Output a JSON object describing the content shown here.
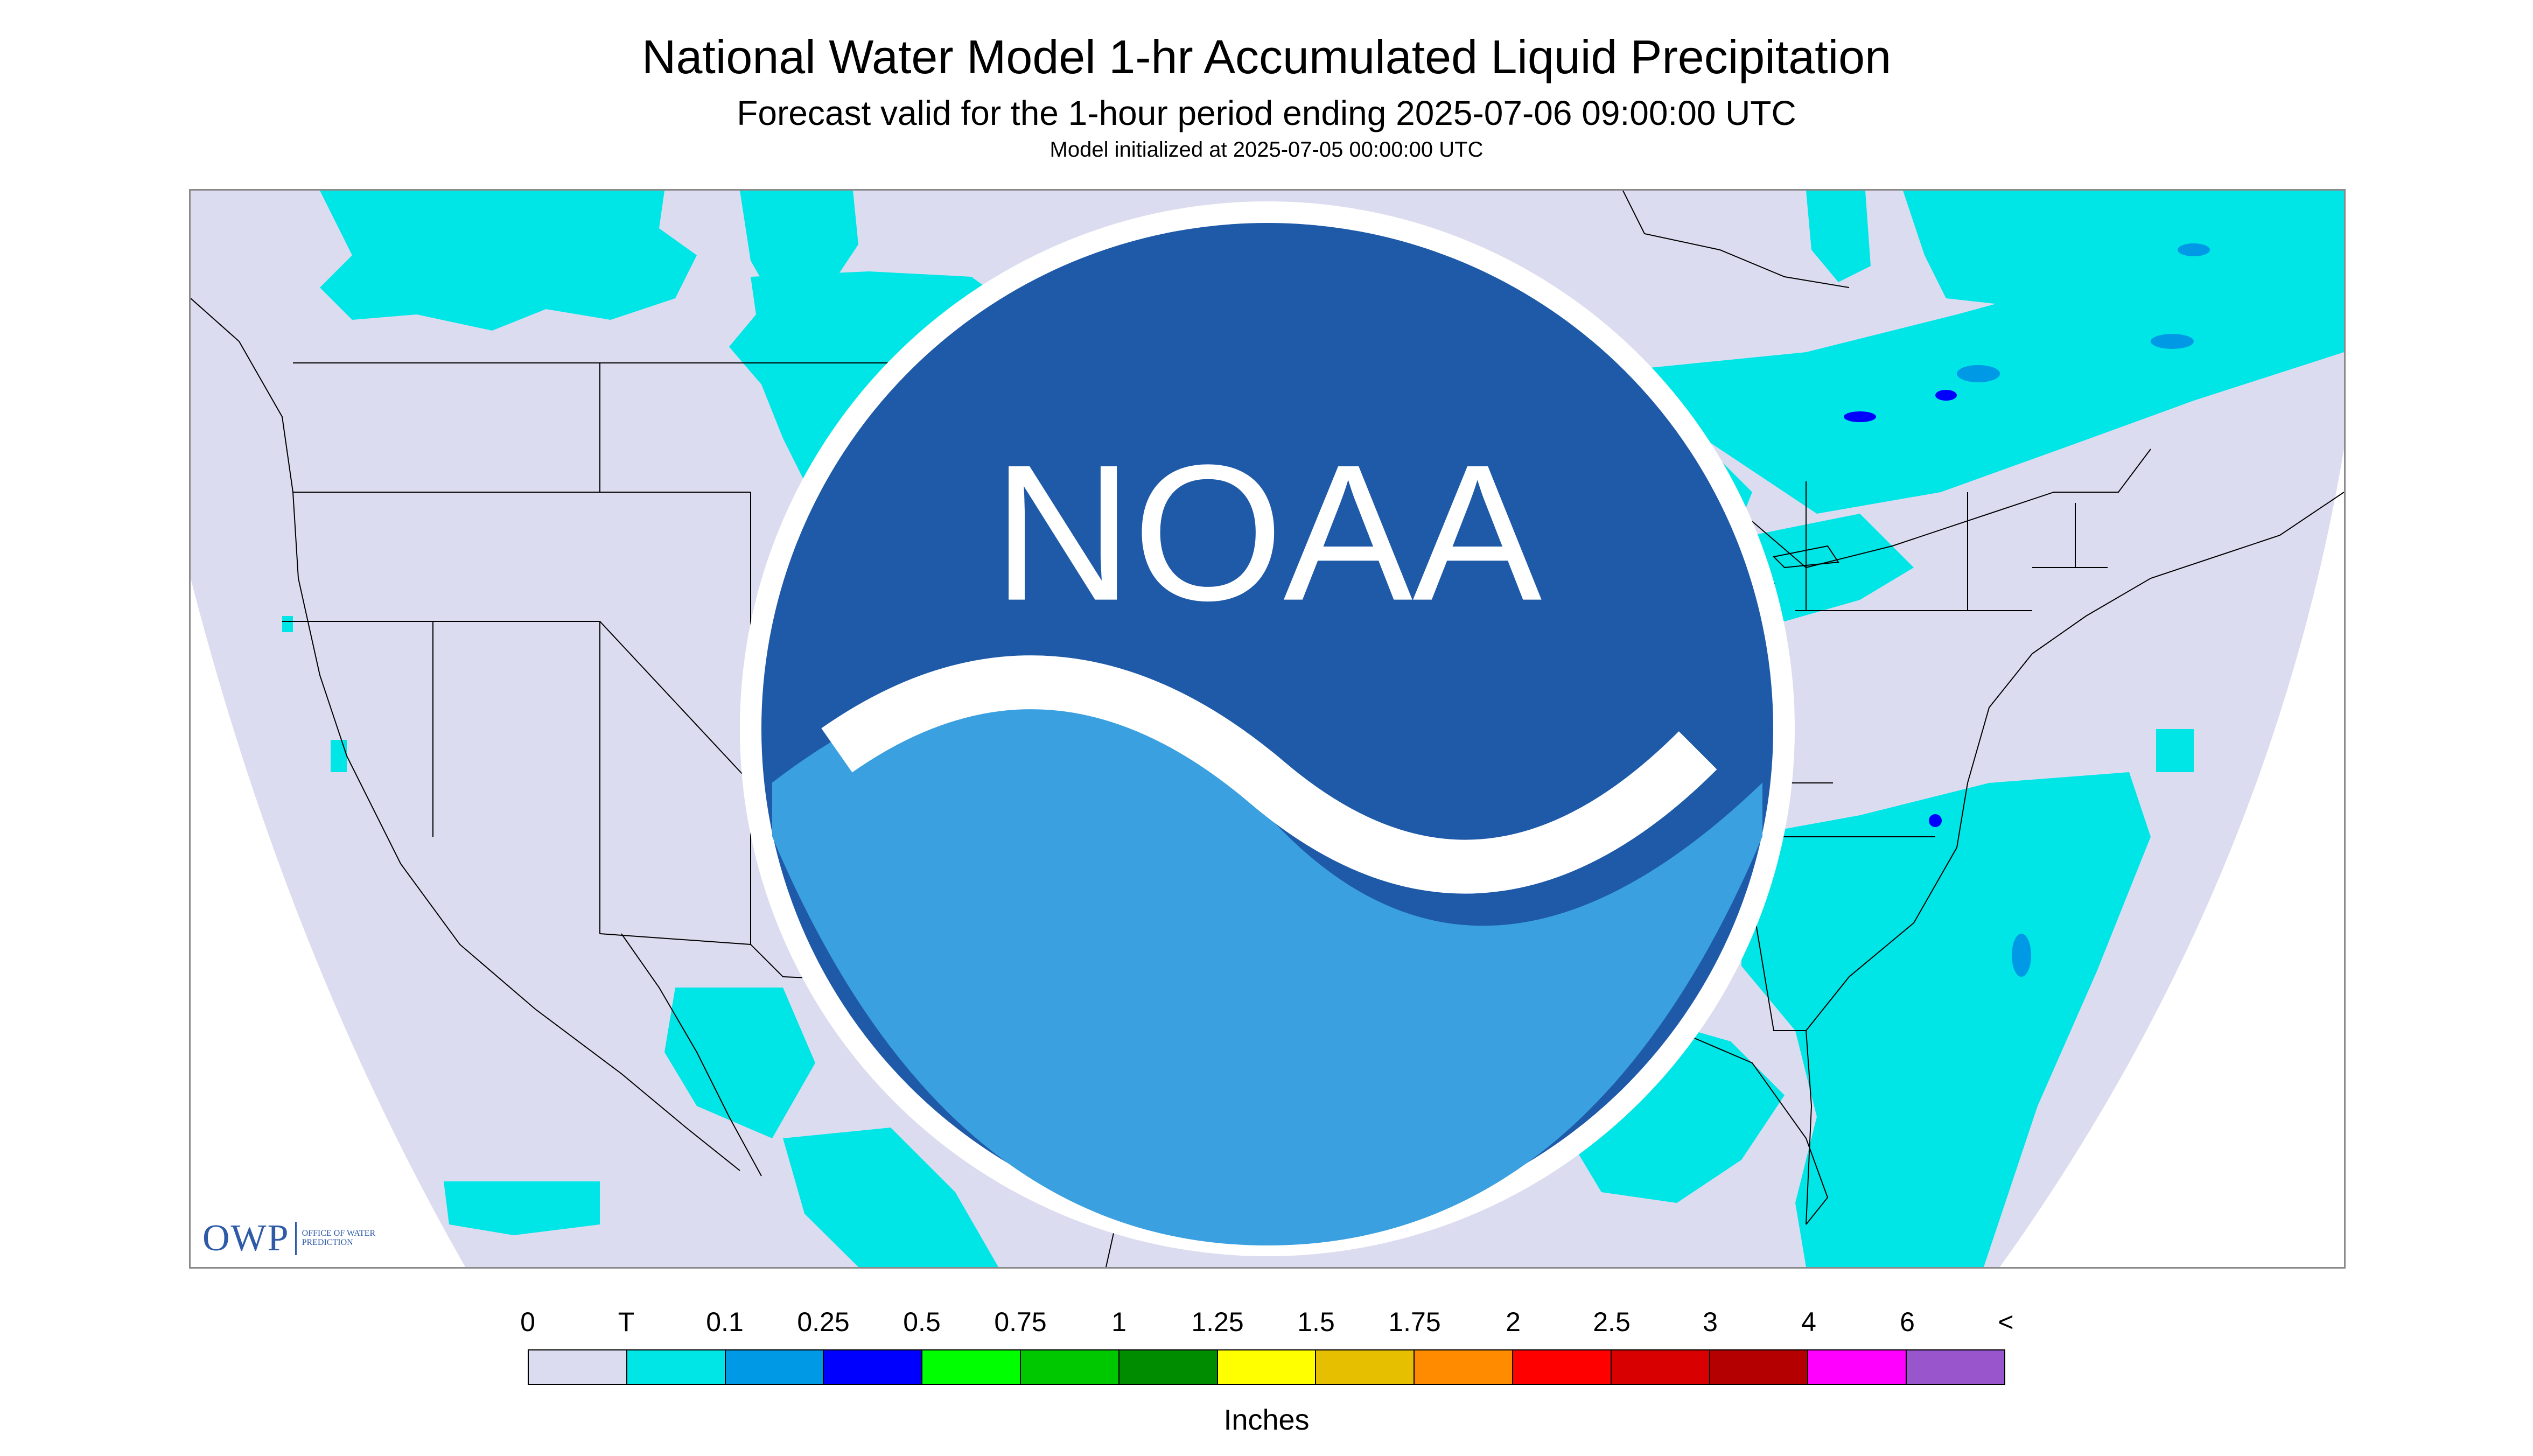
{
  "header": {
    "title": "National Water Model 1-hr Accumulated Liquid Precipitation",
    "subtitle": "Forecast valid for the 1-hour period ending 2025-07-06 09:00:00 UTC",
    "init": "Model initialized at 2025-07-05 00:00:00 UTC"
  },
  "logos": {
    "owp_mark": "OWP",
    "owp_text": "OFFICE OF WATER PREDICTION",
    "noaa_text": "NOAA"
  },
  "legend": {
    "labels": [
      "0",
      "T",
      "0.1",
      "0.25",
      "0.5",
      "0.75",
      "1",
      "1.25",
      "1.5",
      "1.75",
      "2",
      "2.5",
      "3",
      "4",
      "6",
      "<"
    ],
    "colors": [
      "#dcdcf0",
      "#00e5e5",
      "#0099e6",
      "#0000ff",
      "#00ff00",
      "#00c800",
      "#008c00",
      "#ffff00",
      "#e6bf00",
      "#ff8c00",
      "#ff0000",
      "#d80000",
      "#b40000",
      "#ff00ff",
      "#9955cc"
    ],
    "units": "Inches"
  },
  "map": {
    "background_color": "#dcdcf0",
    "precip_color_trace": "#00e5e5",
    "precip_color_light": "#0099e6",
    "precip_color_moderate": "#0000ff",
    "boundary_color": "#000000"
  }
}
